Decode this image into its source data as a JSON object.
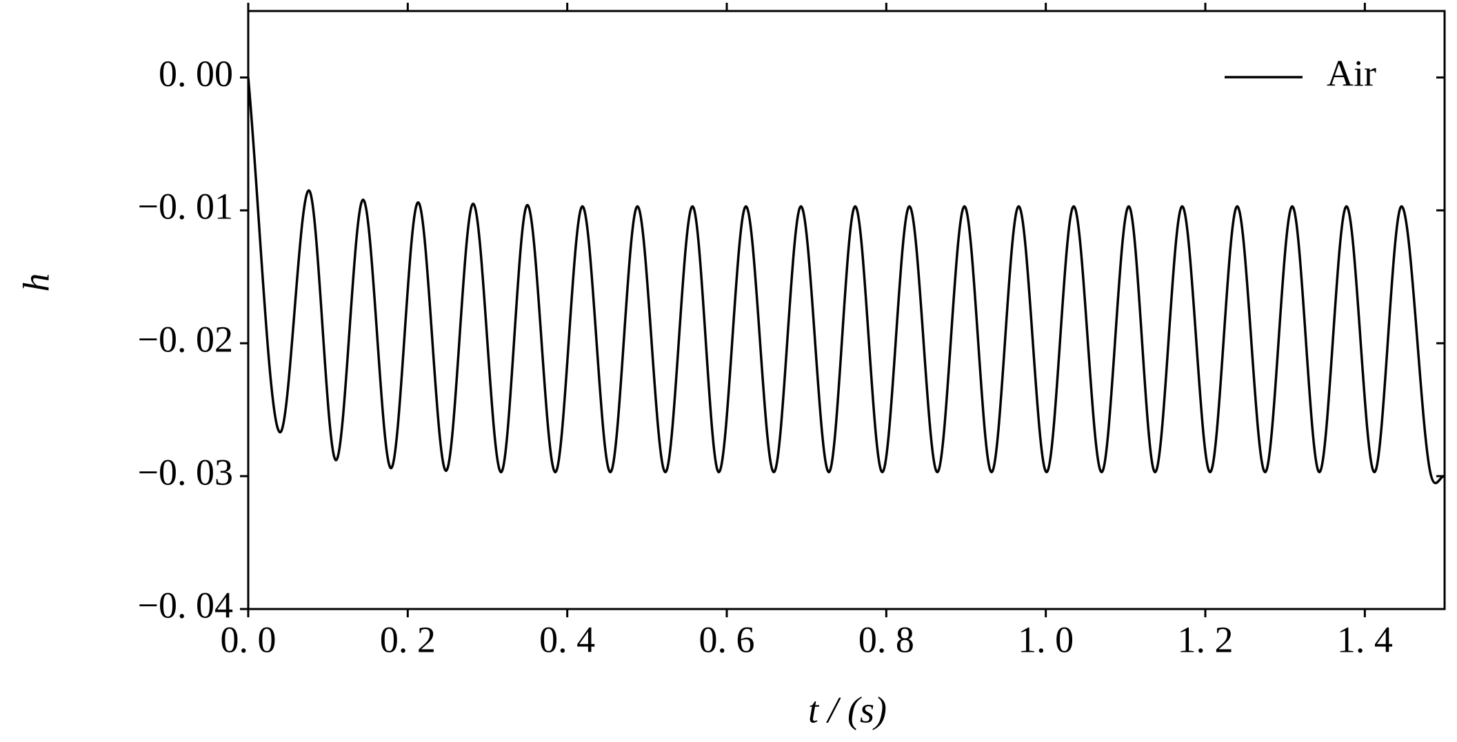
{
  "chart_data": {
    "type": "line",
    "x_label": "t / (s)",
    "y_label": "h",
    "x": [
      0,
      0.04,
      0.076,
      0.11,
      0.144,
      0.179,
      0.213,
      0.248,
      0.282,
      0.317,
      0.35,
      0.385,
      0.419,
      0.454,
      0.488,
      0.523,
      0.557,
      0.59,
      0.624,
      0.659,
      0.693,
      0.728,
      0.761,
      0.795,
      0.829,
      0.864,
      0.898,
      0.932,
      0.966,
      1.001,
      1.035,
      1.07,
      1.104,
      1.137,
      1.171,
      1.206,
      1.24,
      1.275,
      1.309,
      1.343,
      1.377,
      1.412,
      1.446,
      1.482,
      1.5
    ],
    "series": [
      {
        "name": "Air",
        "color": "#000000",
        "values": [
          0,
          -0.0267,
          -0.0085,
          -0.0288,
          -0.0092,
          -0.0294,
          -0.0094,
          -0.0296,
          -0.0095,
          -0.0297,
          -0.0096,
          -0.0297,
          -0.0097,
          -0.0297,
          -0.0097,
          -0.0297,
          -0.0097,
          -0.0297,
          -0.0097,
          -0.0297,
          -0.0097,
          -0.0297,
          -0.0097,
          -0.0297,
          -0.0097,
          -0.0297,
          -0.0097,
          -0.0297,
          -0.0097,
          -0.0297,
          -0.0097,
          -0.0297,
          -0.0097,
          -0.0297,
          -0.0097,
          -0.0297,
          -0.0097,
          -0.0297,
          -0.0097,
          -0.0297,
          -0.0097,
          -0.0297,
          -0.0097,
          -0.0297,
          -0.03
        ]
      }
    ],
    "xlim": [
      0,
      1.5
    ],
    "ylim": [
      -0.04,
      0.005
    ],
    "xticks": [
      {
        "value": 0,
        "label": "0. 0"
      },
      {
        "value": 0.2,
        "label": "0. 2"
      },
      {
        "value": 0.4,
        "label": "0. 4"
      },
      {
        "value": 0.6,
        "label": "0. 6"
      },
      {
        "value": 0.8,
        "label": "0. 8"
      },
      {
        "value": 1.0,
        "label": "1. 0"
      },
      {
        "value": 1.2,
        "label": "1. 2"
      },
      {
        "value": 1.4,
        "label": "1. 4"
      }
    ],
    "yticks": [
      {
        "value": -0.04,
        "label": "−0. 04"
      },
      {
        "value": -0.03,
        "label": "−0. 03"
      },
      {
        "value": -0.02,
        "label": "−0. 02"
      },
      {
        "value": -0.01,
        "label": "−0. 01"
      },
      {
        "value": 0,
        "label": "0. 00"
      }
    ],
    "grid": false,
    "legend": "upper right"
  }
}
